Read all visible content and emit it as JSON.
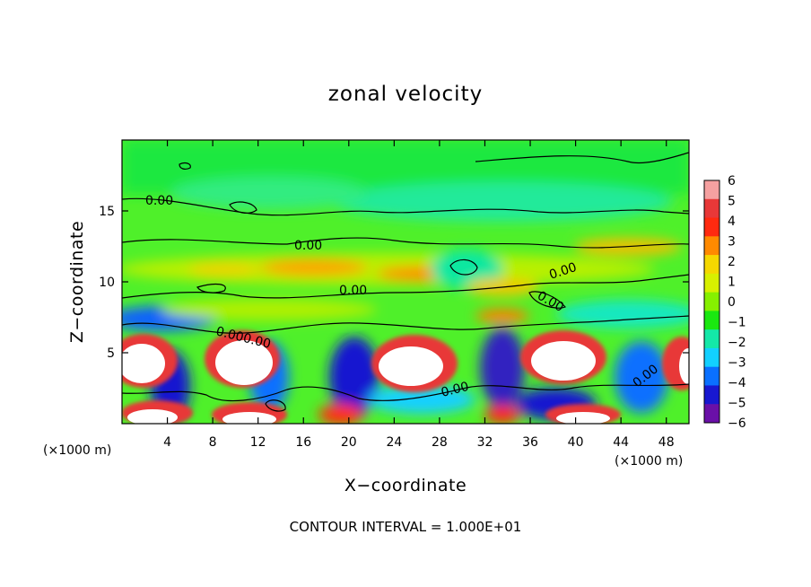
{
  "chart_data": {
    "type": "heatmap",
    "title": "zonal velocity",
    "xlabel": "X−coordinate",
    "ylabel": "Z−coordinate",
    "x_unit_note": "(×1000 m)",
    "x_unit_note_right": "(×1000 m)",
    "footnote": "CONTOUR INTERVAL = 1.000E+01",
    "xlim": [
      0,
      50
    ],
    "ylim": [
      0,
      20
    ],
    "x_ticks": [
      4,
      8,
      12,
      16,
      20,
      24,
      28,
      32,
      36,
      40,
      44,
      48
    ],
    "x_tick_labels": [
      "4",
      "8",
      "12",
      "16",
      "20",
      "24",
      "28",
      "32",
      "36",
      "40",
      "44",
      "48"
    ],
    "y_ticks": [
      5,
      10,
      15
    ],
    "y_tick_labels": [
      "5",
      "10",
      "15"
    ],
    "colorbar": {
      "levels": [
        6,
        5,
        4,
        3,
        2,
        1,
        0,
        -1,
        -2,
        -3,
        -4,
        -5,
        -6
      ],
      "labels": [
        "6",
        "5",
        "4",
        "3",
        "2",
        "1",
        "0",
        "−1",
        "−2",
        "−3",
        "−4",
        "−5",
        "−6"
      ],
      "colors": [
        "#f5a0a0",
        "#e83838",
        "#ff2a10",
        "#ff8a00",
        "#f5d800",
        "#d8f000",
        "#86f000",
        "#1ae810",
        "#14e8a8",
        "#12d0ff",
        "#0a70ff",
        "#1818d0",
        "#6a10a8"
      ]
    },
    "contour_labels": [
      "0.00",
      "0.00",
      "0.00",
      "0.000.00",
      "0.00",
      "0.00",
      "0.00",
      "0.00"
    ],
    "grid": false
  }
}
